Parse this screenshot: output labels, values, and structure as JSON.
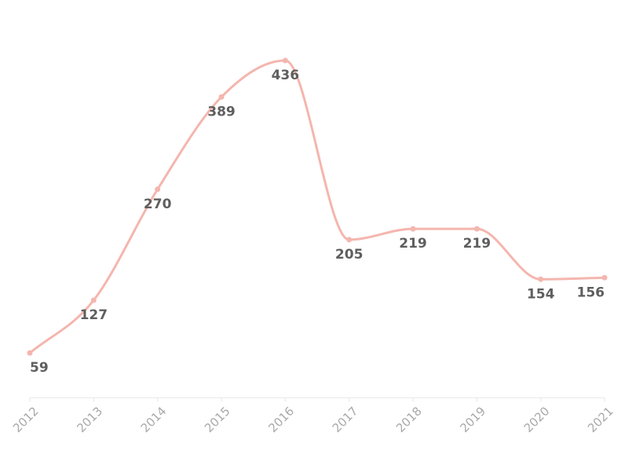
{
  "chart_data": {
    "type": "line",
    "title": "",
    "xlabel": "",
    "ylabel": "",
    "categories": [
      "2012",
      "2013",
      "2014",
      "2015",
      "2016",
      "2017",
      "2018",
      "2019",
      "2020",
      "2021"
    ],
    "series": [
      {
        "values": [
          59,
          127,
          270,
          389,
          436,
          205,
          219,
          219,
          154,
          156
        ],
        "data_labels": [
          "59",
          "127",
          "270",
          "389",
          "436",
          "205",
          "219",
          "219",
          "154",
          "156"
        ]
      }
    ],
    "ylim": [
      0,
      460
    ],
    "grid": false,
    "smooth": true,
    "colors": {
      "line": "#f4b6ae",
      "label": "#5e5e5e",
      "tick": "#a9a9a9",
      "axis": "#e6e6e6"
    }
  }
}
